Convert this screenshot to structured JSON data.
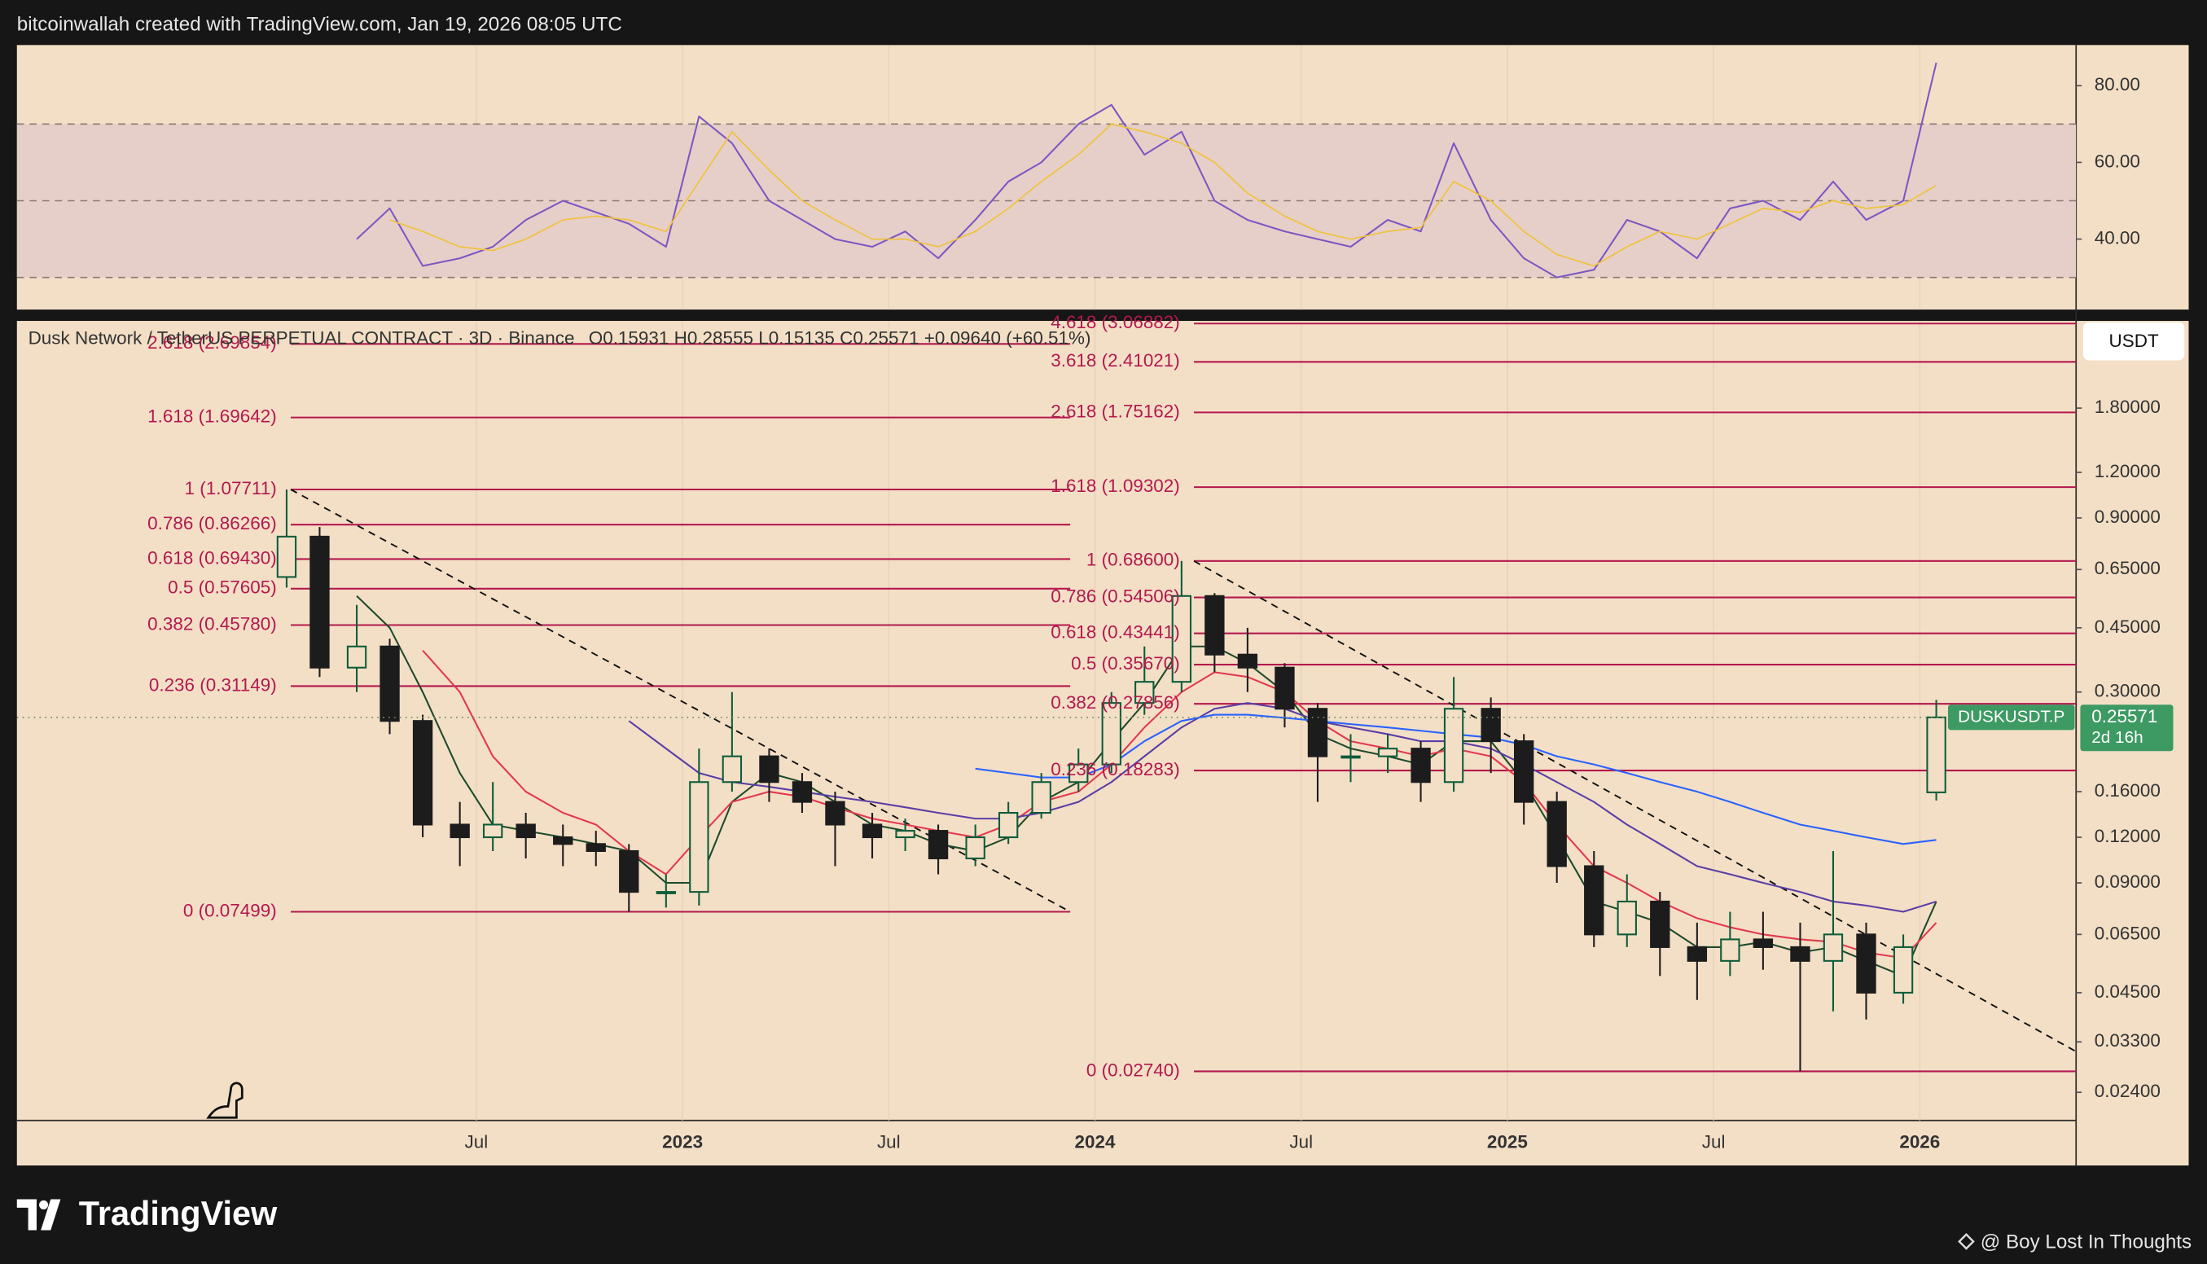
{
  "header": {
    "credit": "bitcoinwallah created with TradingView.com, Jan 19, 2026 08:05 UTC"
  },
  "footer": {
    "logo": "TradingView",
    "attribution": "@ Boy Lost In Thoughts"
  },
  "chart_data": {
    "type": "candlestick",
    "title": "Dusk Network / TetherUS PERPETUAL CONTRACT · 3D · Binance",
    "ohlc_text": "O0.15931 H0.28555 L0.15135 C0.25571 +0.09640 (+60.51%)",
    "currency": "USDT",
    "symbol_tag": "DUSKUSDT.P",
    "countdown": "2d 16h",
    "log_scale": true,
    "grid": true,
    "up_color": "#0d5c3a",
    "down_color": "#1c1c1c",
    "tag_color": "#3d9a63",
    "xlim": [
      2021.386,
      2026.379
    ],
    "xticks": [
      {
        "value": 2022.5,
        "label": "Jul"
      },
      2023,
      {
        "value": 2023.5,
        "label": "Jul"
      },
      2024,
      {
        "value": 2024.5,
        "label": "Jul"
      },
      2025,
      {
        "value": 2025.5,
        "label": "Jul"
      },
      2026
    ],
    "ylim": [
      0.0201,
      3.12
    ],
    "yticks": [
      {
        "value": 1.8,
        "label": "1.80000"
      },
      {
        "value": 1.2,
        "label": "1.20000"
      },
      {
        "value": 0.9,
        "label": "0.90000"
      },
      {
        "value": 0.65,
        "label": "0.65000"
      },
      {
        "value": 0.45,
        "label": "0.45000"
      },
      {
        "value": 0.3,
        "label": "0.30000"
      },
      {
        "value": 0.16,
        "label": "0.16000"
      },
      {
        "value": 0.12,
        "label": "0.12000"
      },
      {
        "value": 0.09,
        "label": "0.09000"
      },
      {
        "value": 0.065,
        "label": "0.06500"
      },
      {
        "value": 0.045,
        "label": "0.04500"
      },
      {
        "value": 0.033,
        "label": "0.03300"
      },
      {
        "value": 0.024,
        "label": "0.02400"
      }
    ],
    "x": [
      2022.04,
      2022.12,
      2022.21,
      2022.29,
      2022.37,
      2022.46,
      2022.54,
      2022.62,
      2022.71,
      2022.79,
      2022.87,
      2022.96,
      2023.04,
      2023.12,
      2023.21,
      2023.29,
      2023.37,
      2023.46,
      2023.54,
      2023.62,
      2023.71,
      2023.79,
      2023.87,
      2023.96,
      2024.04,
      2024.12,
      2024.21,
      2024.29,
      2024.37,
      2024.46,
      2024.54,
      2024.62,
      2024.71,
      2024.79,
      2024.87,
      2024.96,
      2025.04,
      2025.12,
      2025.21,
      2025.29,
      2025.37,
      2025.46,
      2025.54,
      2025.62,
      2025.71,
      2025.79,
      2025.87,
      2025.96,
      2026.04
    ],
    "open": [
      0.62,
      0.8,
      0.35,
      0.4,
      0.25,
      0.13,
      0.12,
      0.13,
      0.12,
      0.115,
      0.11,
      0.085,
      0.085,
      0.17,
      0.2,
      0.17,
      0.15,
      0.13,
      0.12,
      0.125,
      0.105,
      0.12,
      0.14,
      0.17,
      0.19,
      0.28,
      0.32,
      0.55,
      0.38,
      0.35,
      0.27,
      0.2,
      0.2,
      0.21,
      0.17,
      0.27,
      0.22,
      0.15,
      0.1,
      0.065,
      0.08,
      0.06,
      0.055,
      0.063,
      0.06,
      0.055,
      0.065,
      0.045,
      0.15931
    ],
    "high": [
      1.07711,
      0.85,
      0.52,
      0.42,
      0.26,
      0.15,
      0.17,
      0.14,
      0.13,
      0.125,
      0.115,
      0.095,
      0.21,
      0.3,
      0.21,
      0.18,
      0.16,
      0.14,
      0.135,
      0.13,
      0.13,
      0.15,
      0.18,
      0.21,
      0.3,
      0.4,
      0.686,
      0.56,
      0.45,
      0.36,
      0.28,
      0.23,
      0.23,
      0.22,
      0.33,
      0.29,
      0.23,
      0.16,
      0.11,
      0.095,
      0.085,
      0.07,
      0.075,
      0.075,
      0.07,
      0.11,
      0.07,
      0.065,
      0.28555
    ],
    "low": [
      0.58,
      0.33,
      0.3,
      0.23,
      0.12,
      0.1,
      0.11,
      0.105,
      0.1,
      0.1,
      0.075,
      0.077,
      0.078,
      0.16,
      0.15,
      0.14,
      0.1,
      0.105,
      0.11,
      0.095,
      0.1,
      0.115,
      0.135,
      0.16,
      0.18,
      0.26,
      0.3,
      0.34,
      0.3,
      0.24,
      0.15,
      0.17,
      0.18,
      0.15,
      0.16,
      0.18,
      0.13,
      0.09,
      0.06,
      0.06,
      0.05,
      0.043,
      0.05,
      0.052,
      0.0274,
      0.04,
      0.038,
      0.042,
      0.15135
    ],
    "close": [
      0.8,
      0.35,
      0.4,
      0.25,
      0.13,
      0.12,
      0.13,
      0.12,
      0.115,
      0.11,
      0.085,
      0.085,
      0.17,
      0.2,
      0.17,
      0.15,
      0.13,
      0.12,
      0.125,
      0.105,
      0.12,
      0.14,
      0.17,
      0.19,
      0.28,
      0.32,
      0.55,
      0.38,
      0.35,
      0.27,
      0.2,
      0.2,
      0.21,
      0.17,
      0.27,
      0.22,
      0.15,
      0.1,
      0.065,
      0.08,
      0.06,
      0.055,
      0.063,
      0.06,
      0.055,
      0.065,
      0.045,
      0.06,
      0.25571
    ],
    "moving_averages": [
      {
        "color": "#1f4a2c",
        "values": [
          null,
          null,
          0.55,
          0.45,
          0.3,
          0.18,
          0.13,
          0.125,
          0.12,
          0.115,
          0.11,
          0.09,
          0.09,
          0.15,
          0.18,
          0.17,
          0.15,
          0.13,
          0.125,
          0.115,
          0.11,
          0.12,
          0.15,
          0.17,
          0.22,
          0.28,
          0.4,
          0.4,
          0.36,
          0.3,
          0.23,
          0.21,
          0.2,
          0.19,
          0.22,
          0.22,
          0.17,
          0.12,
          0.08,
          0.075,
          0.07,
          0.06,
          0.06,
          0.062,
          0.058,
          0.06,
          0.055,
          0.05,
          0.08
        ]
      },
      {
        "color": "#e2394f",
        "values": [
          null,
          null,
          null,
          null,
          0.39,
          0.3,
          0.2,
          0.16,
          0.14,
          0.13,
          0.11,
          0.095,
          0.12,
          0.15,
          0.16,
          0.155,
          0.145,
          0.135,
          0.13,
          0.125,
          0.12,
          0.13,
          0.15,
          0.16,
          0.19,
          0.24,
          0.3,
          0.34,
          0.33,
          0.3,
          0.25,
          0.22,
          0.21,
          0.2,
          0.21,
          0.2,
          0.17,
          0.13,
          0.1,
          0.09,
          0.08,
          0.072,
          0.068,
          0.065,
          0.063,
          0.062,
          0.058,
          0.056,
          0.07
        ]
      },
      {
        "color": "#5a3ea6",
        "values": [
          null,
          null,
          null,
          null,
          null,
          null,
          null,
          null,
          null,
          null,
          0.25,
          0.21,
          0.18,
          0.17,
          0.165,
          0.16,
          0.155,
          0.15,
          0.145,
          0.14,
          0.135,
          0.135,
          0.14,
          0.15,
          0.17,
          0.2,
          0.24,
          0.27,
          0.28,
          0.27,
          0.25,
          0.24,
          0.23,
          0.22,
          0.22,
          0.21,
          0.19,
          0.17,
          0.15,
          0.13,
          0.115,
          0.1,
          0.095,
          0.09,
          0.085,
          0.08,
          0.078,
          0.075,
          0.08
        ]
      },
      {
        "color": "#2962ff",
        "values": [
          null,
          null,
          null,
          null,
          null,
          null,
          null,
          null,
          null,
          null,
          null,
          null,
          null,
          null,
          null,
          null,
          null,
          null,
          null,
          null,
          0.185,
          0.18,
          0.175,
          0.175,
          0.19,
          0.22,
          0.25,
          0.26,
          0.26,
          0.255,
          0.25,
          0.245,
          0.24,
          0.235,
          0.23,
          0.225,
          0.215,
          0.2,
          0.19,
          0.18,
          0.17,
          0.16,
          0.15,
          0.14,
          0.13,
          0.125,
          0.12,
          0.115,
          0.118
        ]
      }
    ],
    "trendlines": [
      {
        "x": [
          2022.05,
          2023.94
        ],
        "y": [
          1.07711,
          0.07499
        ]
      },
      {
        "x": [
          2024.24,
          2026.38
        ],
        "y": [
          0.686,
          0.031
        ]
      }
    ],
    "fib_color": "#b3194f",
    "fib_sets": [
      {
        "x": [
          2022.05,
          2023.94
        ],
        "levels": [
          {
            "label": "2.618 (2.69854)",
            "price": 2.69854
          },
          {
            "label": "1.618 (1.69642)",
            "price": 1.69642
          },
          {
            "label": "1 (1.07711)",
            "price": 1.07711
          },
          {
            "label": "0.786 (0.86266)",
            "price": 0.86266
          },
          {
            "label": "0.618 (0.69430)",
            "price": 0.6943
          },
          {
            "label": "0.5 (0.57605)",
            "price": 0.57605
          },
          {
            "label": "0.382 (0.45780)",
            "price": 0.4578
          },
          {
            "label": "0.236 (0.31149)",
            "price": 0.31149
          },
          {
            "label": "0 (0.07499)",
            "price": 0.07499
          }
        ]
      },
      {
        "x": [
          2024.24,
          2026.38
        ],
        "levels": [
          {
            "label": "4.618 (3.06882)",
            "price": 3.06882
          },
          {
            "label": "3.618 (2.41021)",
            "price": 2.41021
          },
          {
            "label": "2.618 (1.75162)",
            "price": 1.75162
          },
          {
            "label": "1.618 (1.09302)",
            "price": 1.09302
          },
          {
            "label": "1 (0.68600)",
            "price": 0.686
          },
          {
            "label": "0.786 (0.54506)",
            "price": 0.54506
          },
          {
            "label": "0.618 (0.43441)",
            "price": 0.43441
          },
          {
            "label": "0.5 (0.35670)",
            "price": 0.3567
          },
          {
            "label": "0.382 (0.27856)",
            "price": 0.27856
          },
          {
            "label": "0.236 (0.18283)",
            "price": 0.18283
          },
          {
            "label": "0 (0.02740)",
            "price": 0.0274
          }
        ]
      }
    ],
    "rsi": {
      "ylim": [
        21.6,
        90.6
      ],
      "yticks": [
        {
          "value": 80,
          "label": "80.00"
        },
        {
          "value": 60,
          "label": "60.00"
        },
        {
          "value": 40,
          "label": "40.00"
        }
      ],
      "bands": [
        70,
        50,
        30
      ],
      "band_fill": "#e6cfc9",
      "series": [
        {
          "color": "#7e57c2",
          "values": [
            null,
            null,
            40,
            48,
            33,
            35,
            38,
            45,
            50,
            47,
            44,
            38,
            72,
            65,
            50,
            45,
            40,
            38,
            42,
            35,
            45,
            55,
            60,
            70,
            75,
            62,
            68,
            50,
            45,
            42,
            40,
            38,
            45,
            42,
            65,
            45,
            35,
            30,
            32,
            45,
            42,
            35,
            48,
            50,
            45,
            55,
            45,
            50,
            86
          ]
        },
        {
          "color": "#f0c23e",
          "values": [
            null,
            null,
            null,
            45,
            42,
            38,
            37,
            40,
            45,
            46,
            45,
            42,
            55,
            68,
            58,
            50,
            45,
            40,
            40,
            38,
            42,
            48,
            55,
            62,
            70,
            68,
            65,
            60,
            52,
            46,
            42,
            40,
            42,
            43,
            55,
            50,
            42,
            36,
            33,
            38,
            42,
            40,
            44,
            48,
            47,
            50,
            48,
            49,
            54
          ]
        }
      ]
    }
  }
}
